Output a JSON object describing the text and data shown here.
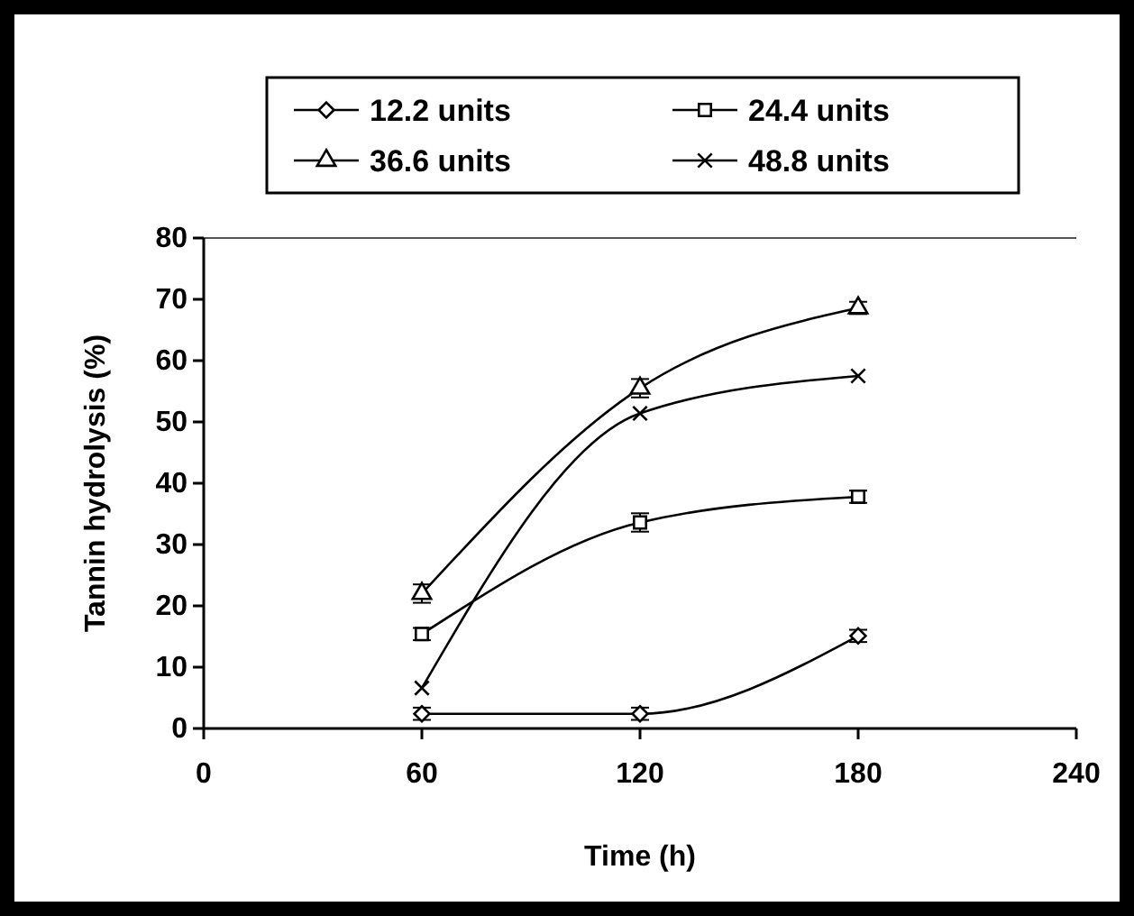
{
  "chart_data": {
    "type": "line",
    "xlabel": "Time (h)",
    "ylabel": "Tannin hydrolysis (%)",
    "x": [
      60,
      120,
      180
    ],
    "series": [
      {
        "name": "12.2 units",
        "color": "#000000",
        "marker": "diamond",
        "values": [
          2.4,
          2.4,
          15.1
        ],
        "errors": [
          1,
          1,
          1
        ]
      },
      {
        "name": "24.4 units",
        "color": "#000000",
        "marker": "square",
        "values": [
          15.4,
          33.6,
          37.8
        ],
        "errors": [
          1,
          1.5,
          1
        ]
      },
      {
        "name": "36.6 units",
        "color": "#000000",
        "marker": "triangle",
        "values": [
          22,
          55.5,
          68.6
        ],
        "errors": [
          1.5,
          1.5,
          1
        ]
      },
      {
        "name": "48.8 units",
        "color": "#000000",
        "marker": "cross",
        "values": [
          6.6,
          51.4,
          57.5
        ]
      }
    ],
    "xlim": [
      0,
      240
    ],
    "xticks": [
      0,
      60,
      120,
      180,
      240
    ],
    "ylim": [
      0,
      80
    ],
    "yticks": [
      0,
      10,
      20,
      30,
      40,
      50,
      60,
      70,
      80
    ],
    "grid": false,
    "legend": "top",
    "line_style": "solid"
  }
}
